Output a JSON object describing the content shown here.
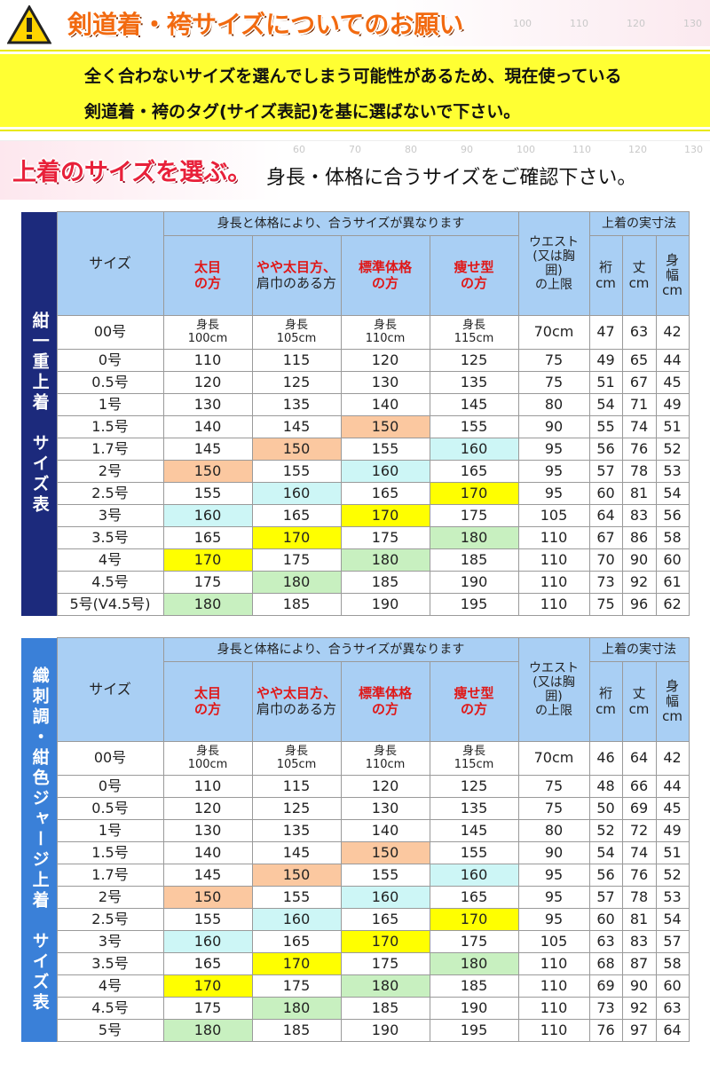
{
  "header": {
    "title": "剣道着・袴サイズについてのお願い",
    "notice": [
      "全く合わないサイズを選んでしまう可能性があるため、現在使っている",
      "剣道着・袴のタグ(サイズ表記)を基に選ばないで下さい。"
    ]
  },
  "rulers": {
    "top": [
      100,
      110,
      120,
      130
    ],
    "middle": [
      60,
      70,
      80,
      90,
      100,
      110,
      120,
      130
    ]
  },
  "section": {
    "heading": "上着のサイズを選ぶ。",
    "subheading": "身長・体格に合うサイズをご確認下さい。"
  },
  "highlight_colors": {
    "150": "#fbc8a0",
    "160": "#cdf6f6",
    "170": "#ffff00",
    "180": "#c8f0c0"
  },
  "tables": [
    {
      "side_label": "紺一重上着　サイズ表",
      "side_color": "#1c2a7c",
      "columns": {
        "size": "サイズ",
        "group": "身長と体格により、合うサイズが異なります",
        "body_types": [
          [
            "太目",
            "の方"
          ],
          [
            "やや太目方、",
            "肩巾のある方"
          ],
          [
            "標準体格",
            "の方"
          ],
          [
            "痩せ型",
            "の方"
          ]
        ],
        "waist": [
          "ウエスト",
          "(又は胸",
          "囲)",
          "の上限"
        ],
        "measures_group": "上着の実寸法",
        "measures": [
          [
            "裄",
            "cm"
          ],
          [
            "丈",
            "cm"
          ],
          [
            "身",
            "幅",
            "cm"
          ]
        ]
      },
      "height_row": {
        "size": "00号",
        "height_label": "身長",
        "heights": [
          "100cm",
          "105cm",
          "110cm",
          "115cm"
        ],
        "waist": "70cm",
        "measures": [
          47,
          63,
          42
        ]
      },
      "rows": [
        {
          "size": "0号",
          "heights": [
            110,
            115,
            120,
            125
          ],
          "waist": 75,
          "measures": [
            49,
            65,
            44
          ]
        },
        {
          "size": "0.5号",
          "heights": [
            120,
            125,
            130,
            135
          ],
          "waist": 75,
          "measures": [
            51,
            67,
            45
          ]
        },
        {
          "size": "1号",
          "heights": [
            130,
            135,
            140,
            145
          ],
          "waist": 80,
          "measures": [
            54,
            71,
            49
          ]
        },
        {
          "size": "1.5号",
          "heights": [
            140,
            145,
            150,
            155
          ],
          "waist": 90,
          "measures": [
            55,
            74,
            51
          ]
        },
        {
          "size": "1.7号",
          "heights": [
            145,
            150,
            155,
            160
          ],
          "waist": 95,
          "measures": [
            56,
            76,
            52
          ]
        },
        {
          "size": "2号",
          "heights": [
            150,
            155,
            160,
            165
          ],
          "waist": 95,
          "measures": [
            57,
            78,
            53
          ]
        },
        {
          "size": "2.5号",
          "heights": [
            155,
            160,
            165,
            170
          ],
          "waist": 95,
          "measures": [
            60,
            81,
            54
          ]
        },
        {
          "size": "3号",
          "heights": [
            160,
            165,
            170,
            175
          ],
          "waist": 105,
          "measures": [
            64,
            83,
            56
          ]
        },
        {
          "size": "3.5号",
          "heights": [
            165,
            170,
            175,
            180
          ],
          "waist": 110,
          "measures": [
            67,
            86,
            58
          ]
        },
        {
          "size": "4号",
          "heights": [
            170,
            175,
            180,
            185
          ],
          "waist": 110,
          "measures": [
            70,
            90,
            60
          ]
        },
        {
          "size": "4.5号",
          "heights": [
            175,
            180,
            185,
            190
          ],
          "waist": 110,
          "measures": [
            73,
            92,
            61
          ]
        },
        {
          "size": "5号(V4.5号)",
          "heights": [
            180,
            185,
            190,
            195
          ],
          "waist": 110,
          "measures": [
            75,
            96,
            62
          ]
        }
      ]
    },
    {
      "side_label": "織刺調・紺色ジャージ上着　サイズ表",
      "side_color": "#3a80d8",
      "columns": {
        "size": "サイズ",
        "group": "身長と体格により、合うサイズが異なります",
        "body_types": [
          [
            "太目",
            "の方"
          ],
          [
            "やや太目方、",
            "肩巾のある方"
          ],
          [
            "標準体格",
            "の方"
          ],
          [
            "痩せ型",
            "の方"
          ]
        ],
        "waist": [
          "ウエスト",
          "(又は胸",
          "囲)",
          "の上限"
        ],
        "measures_group": "上着の実寸法",
        "measures": [
          [
            "裄",
            "cm"
          ],
          [
            "丈",
            "cm"
          ],
          [
            "身",
            "幅",
            "cm"
          ]
        ]
      },
      "height_row": {
        "size": "00号",
        "height_label": "身長",
        "heights": [
          "100cm",
          "105cm",
          "110cm",
          "115cm"
        ],
        "waist": "70cm",
        "measures": [
          46,
          64,
          42
        ]
      },
      "rows": [
        {
          "size": "0号",
          "heights": [
            110,
            115,
            120,
            125
          ],
          "waist": 75,
          "measures": [
            48,
            66,
            44
          ]
        },
        {
          "size": "0.5号",
          "heights": [
            120,
            125,
            130,
            135
          ],
          "waist": 75,
          "measures": [
            50,
            69,
            45
          ]
        },
        {
          "size": "1号",
          "heights": [
            130,
            135,
            140,
            145
          ],
          "waist": 80,
          "measures": [
            52,
            72,
            49
          ]
        },
        {
          "size": "1.5号",
          "heights": [
            140,
            145,
            150,
            155
          ],
          "waist": 90,
          "measures": [
            54,
            74,
            51
          ]
        },
        {
          "size": "1.7号",
          "heights": [
            145,
            150,
            155,
            160
          ],
          "waist": 95,
          "measures": [
            56,
            76,
            52
          ]
        },
        {
          "size": "2号",
          "heights": [
            150,
            155,
            160,
            165
          ],
          "waist": 95,
          "measures": [
            57,
            78,
            53
          ]
        },
        {
          "size": "2.5号",
          "heights": [
            155,
            160,
            165,
            170
          ],
          "waist": 95,
          "measures": [
            60,
            81,
            54
          ]
        },
        {
          "size": "3号",
          "heights": [
            160,
            165,
            170,
            175
          ],
          "waist": 105,
          "measures": [
            63,
            83,
            57
          ]
        },
        {
          "size": "3.5号",
          "heights": [
            165,
            170,
            175,
            180
          ],
          "waist": 110,
          "measures": [
            68,
            87,
            58
          ]
        },
        {
          "size": "4号",
          "heights": [
            170,
            175,
            180,
            185
          ],
          "waist": 110,
          "measures": [
            69,
            90,
            60
          ]
        },
        {
          "size": "4.5号",
          "heights": [
            175,
            180,
            185,
            190
          ],
          "waist": 110,
          "measures": [
            73,
            92,
            63
          ]
        },
        {
          "size": "5号",
          "heights": [
            180,
            185,
            190,
            195
          ],
          "waist": 110,
          "measures": [
            76,
            97,
            64
          ]
        }
      ]
    }
  ]
}
